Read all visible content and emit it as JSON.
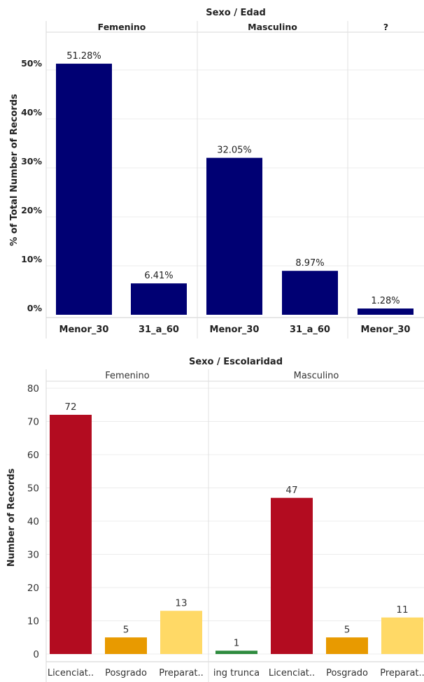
{
  "chart_data": [
    {
      "type": "bar",
      "title": "Sexo / Edad",
      "ylabel": "% of Total Number of Records",
      "ylim": [
        0,
        0.56
      ],
      "yticks": [
        0,
        0.1,
        0.2,
        0.3,
        0.4,
        0.5
      ],
      "ytick_labels": [
        "0%",
        "10%",
        "20%",
        "30%",
        "40%",
        "50%"
      ],
      "grid": true,
      "bar_color": "#000073",
      "panels": [
        {
          "label": "Femenino",
          "categories": [
            "Menor_30",
            "31_a_60"
          ],
          "values": [
            0.5128,
            0.0641
          ],
          "labels": [
            "51.28%",
            "6.41%"
          ]
        },
        {
          "label": "Masculino",
          "categories": [
            "Menor_30",
            "31_a_60"
          ],
          "values": [
            0.3205,
            0.0897
          ],
          "labels": [
            "32.05%",
            "8.97%"
          ]
        },
        {
          "label": "?",
          "categories": [
            "Menor_30"
          ],
          "values": [
            0.0128
          ],
          "labels": [
            "1.28%"
          ]
        }
      ]
    },
    {
      "type": "bar",
      "title": "Sexo / Escolaridad",
      "ylabel": "Number of Records",
      "ylim": [
        0,
        80
      ],
      "yticks": [
        0,
        10,
        20,
        30,
        40,
        50,
        60,
        70,
        80
      ],
      "ytick_labels": [
        "0",
        "10",
        "20",
        "30",
        "40",
        "50",
        "60",
        "70",
        "80"
      ],
      "grid": true,
      "colors": {
        "ing trunca": "#2e8b3e",
        "Licenciat..": "#b30c20",
        "Posgrado": "#e89a00",
        "Preparat..": "#ffd966"
      },
      "panels": [
        {
          "label": "Femenino",
          "categories": [
            "Licenciat..",
            "Posgrado",
            "Preparat.."
          ],
          "values": [
            72,
            5,
            13
          ],
          "labels": [
            "72",
            "5",
            "13"
          ]
        },
        {
          "label": "Masculino",
          "categories": [
            "ing trunca",
            "Licenciat..",
            "Posgrado",
            "Preparat.."
          ],
          "values": [
            1,
            47,
            5,
            11
          ],
          "labels": [
            "1",
            "47",
            "5",
            "11"
          ]
        }
      ]
    }
  ]
}
